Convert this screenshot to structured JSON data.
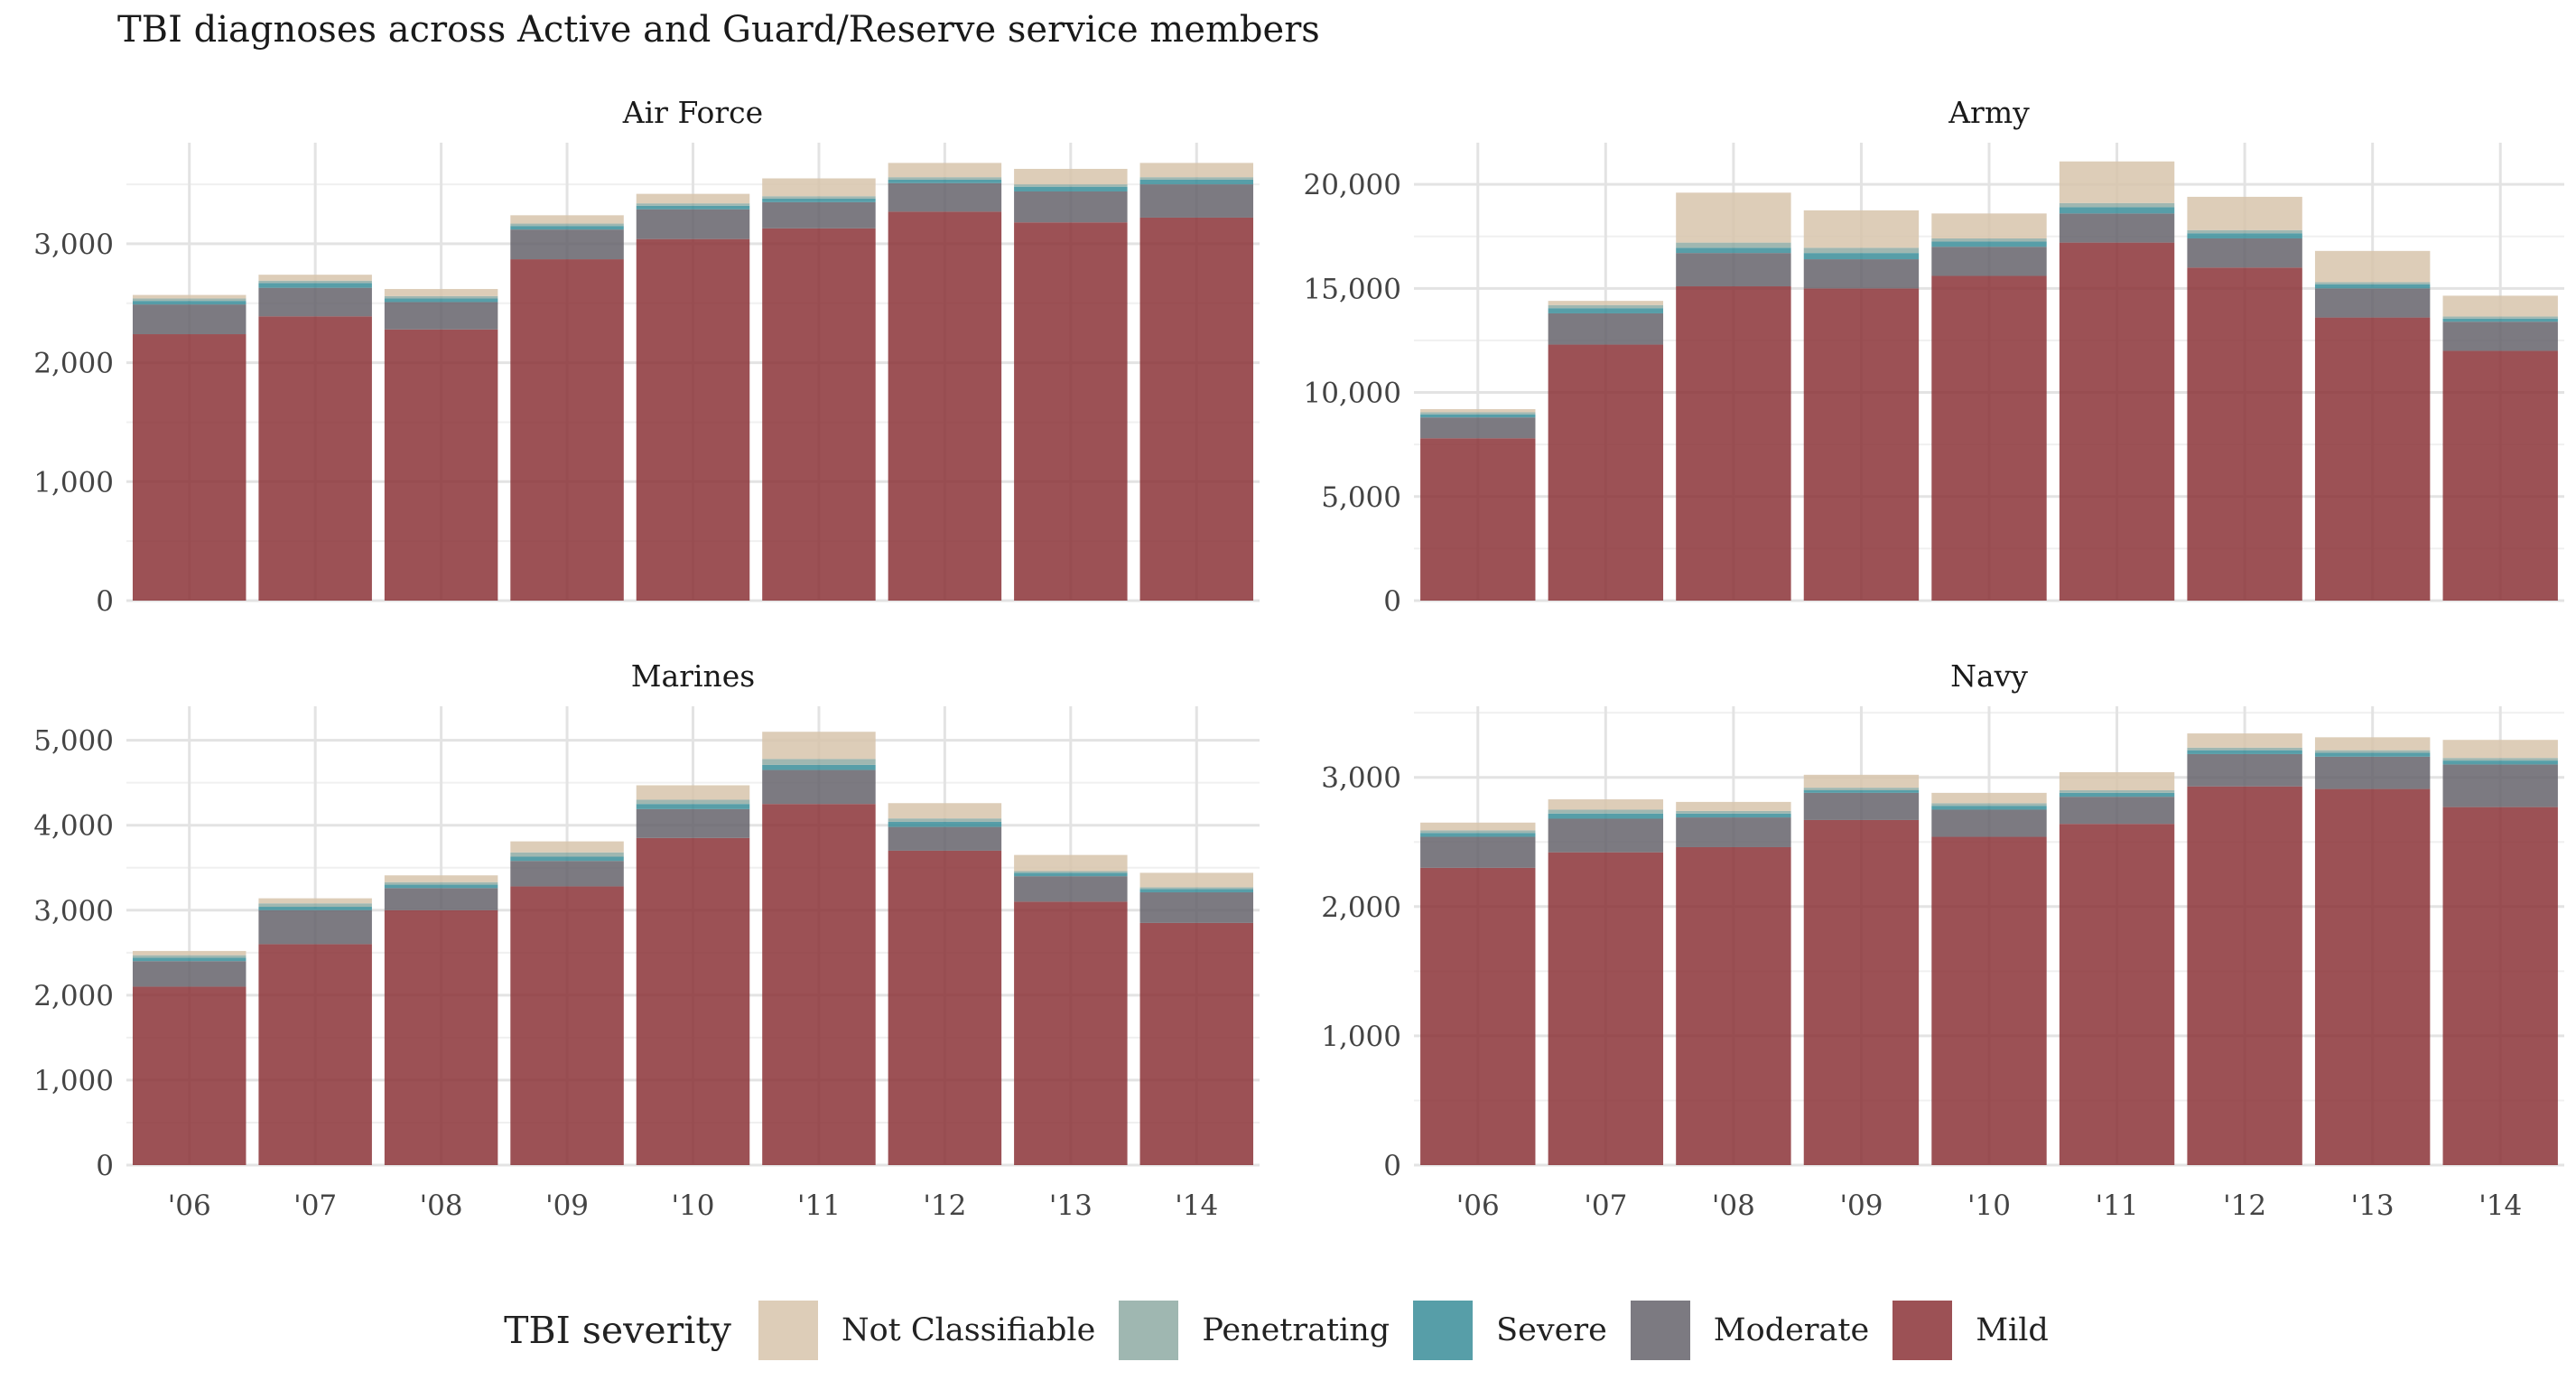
{
  "title": "TBI diagnoses across Active and Guard/Reserve service members",
  "legend": {
    "title": "TBI severity",
    "items": [
      {
        "label": "Not Classifiable",
        "color": "#d7c4ab"
      },
      {
        "label": "Penetrating",
        "color": "#8eaaa3"
      },
      {
        "label": "Severe",
        "color": "#3a8d99"
      },
      {
        "label": "Moderate",
        "color": "#65636b"
      },
      {
        "label": "Mild",
        "color": "#8b3337"
      }
    ]
  },
  "chart_data": [
    {
      "type": "bar",
      "stacked": true,
      "title": "Air Force",
      "categories": [
        "'06",
        "'07",
        "'08",
        "'09",
        "'10",
        "'11",
        "'12",
        "'13",
        "'14"
      ],
      "ylim": [
        0,
        3850
      ],
      "yticks": [
        0,
        1000,
        2000,
        3000
      ],
      "ytick_labels": [
        "0",
        "1,000",
        "2,000",
        "3,000"
      ],
      "series": [
        {
          "name": "Mild",
          "values": [
            2240,
            2390,
            2280,
            2870,
            3040,
            3130,
            3270,
            3180,
            3220
          ]
        },
        {
          "name": "Moderate",
          "values": [
            250,
            240,
            230,
            250,
            250,
            220,
            240,
            260,
            280
          ]
        },
        {
          "name": "Severe",
          "values": [
            30,
            40,
            30,
            30,
            30,
            30,
            30,
            40,
            40
          ]
        },
        {
          "name": "Penetrating",
          "values": [
            20,
            20,
            20,
            20,
            20,
            20,
            20,
            20,
            20
          ]
        },
        {
          "name": "Not Classifiable",
          "values": [
            30,
            50,
            60,
            70,
            80,
            150,
            120,
            130,
            120
          ]
        }
      ]
    },
    {
      "type": "bar",
      "stacked": true,
      "title": "Army",
      "categories": [
        "'06",
        "'07",
        "'08",
        "'09",
        "'10",
        "'11",
        "'12",
        "'13",
        "'14"
      ],
      "ylim": [
        0,
        22000
      ],
      "yticks": [
        0,
        5000,
        10000,
        15000,
        20000
      ],
      "ytick_labels": [
        "0",
        "5,000",
        "10,000",
        "15,000",
        "20,000"
      ],
      "series": [
        {
          "name": "Mild",
          "values": [
            7800,
            12300,
            15100,
            15000,
            15600,
            17200,
            16000,
            13600,
            12000
          ]
        },
        {
          "name": "Moderate",
          "values": [
            1000,
            1500,
            1600,
            1400,
            1400,
            1400,
            1400,
            1400,
            1400
          ]
        },
        {
          "name": "Severe",
          "values": [
            150,
            250,
            250,
            300,
            250,
            300,
            250,
            200,
            150
          ]
        },
        {
          "name": "Penetrating",
          "values": [
            100,
            150,
            250,
            250,
            150,
            200,
            150,
            100,
            100
          ]
        },
        {
          "name": "Not Classifiable",
          "values": [
            150,
            200,
            2400,
            1800,
            1200,
            2000,
            1600,
            1500,
            1000
          ]
        }
      ]
    },
    {
      "type": "bar",
      "stacked": true,
      "title": "Marines",
      "categories": [
        "'06",
        "'07",
        "'08",
        "'09",
        "'10",
        "'11",
        "'12",
        "'13",
        "'14"
      ],
      "ylim": [
        0,
        5400
      ],
      "yticks": [
        0,
        1000,
        2000,
        3000,
        4000,
        5000
      ],
      "ytick_labels": [
        "0",
        "1,000",
        "2,000",
        "3,000",
        "4,000",
        "5,000"
      ],
      "series": [
        {
          "name": "Mild",
          "values": [
            2100,
            2600,
            3000,
            3280,
            3850,
            4250,
            3700,
            3100,
            2850
          ]
        },
        {
          "name": "Moderate",
          "values": [
            300,
            400,
            260,
            300,
            340,
            400,
            280,
            300,
            360
          ]
        },
        {
          "name": "Severe",
          "values": [
            40,
            40,
            40,
            50,
            60,
            60,
            60,
            40,
            40
          ]
        },
        {
          "name": "Penetrating",
          "values": [
            30,
            40,
            30,
            50,
            50,
            70,
            40,
            20,
            20
          ]
        },
        {
          "name": "Not Classifiable",
          "values": [
            50,
            60,
            80,
            130,
            170,
            320,
            180,
            190,
            170
          ]
        }
      ]
    },
    {
      "type": "bar",
      "stacked": true,
      "title": "Navy",
      "categories": [
        "'06",
        "'07",
        "'08",
        "'09",
        "'10",
        "'11",
        "'12",
        "'13",
        "'14"
      ],
      "ylim": [
        0,
        3550
      ],
      "yticks": [
        0,
        1000,
        2000,
        3000
      ],
      "ytick_labels": [
        "0",
        "1,000",
        "2,000",
        "3,000"
      ],
      "series": [
        {
          "name": "Mild",
          "values": [
            2300,
            2420,
            2460,
            2670,
            2540,
            2640,
            2930,
            2910,
            2770
          ]
        },
        {
          "name": "Moderate",
          "values": [
            240,
            260,
            230,
            210,
            210,
            210,
            250,
            250,
            330
          ]
        },
        {
          "name": "Severe",
          "values": [
            30,
            40,
            30,
            20,
            30,
            30,
            30,
            30,
            30
          ]
        },
        {
          "name": "Penetrating",
          "values": [
            20,
            30,
            20,
            20,
            20,
            20,
            20,
            20,
            20
          ]
        },
        {
          "name": "Not Classifiable",
          "values": [
            60,
            80,
            70,
            100,
            80,
            140,
            110,
            100,
            140
          ]
        }
      ]
    }
  ]
}
